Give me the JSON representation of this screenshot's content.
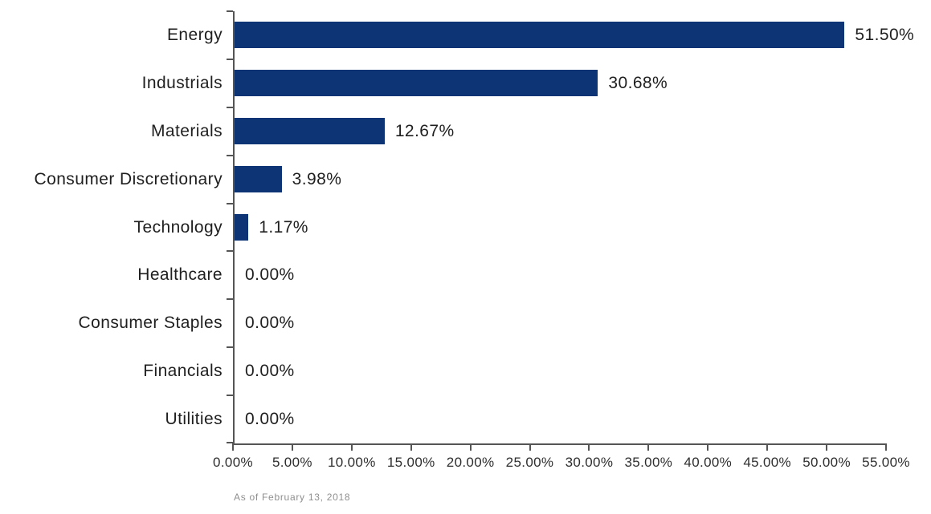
{
  "colors": {
    "bar": "#0d3474",
    "axis": "#555555",
    "text": "#1f1f1f",
    "tick_text": "#2e2e2e",
    "muted": "#8f8f8f"
  },
  "chart_data": {
    "type": "bar",
    "orientation": "horizontal",
    "title": "",
    "xlabel": "",
    "ylabel": "",
    "categories": [
      "Energy",
      "Industrials",
      "Materials",
      "Consumer Discretionary",
      "Technology",
      "Healthcare",
      "Consumer Staples",
      "Financials",
      "Utilities"
    ],
    "values": [
      51.5,
      30.68,
      12.67,
      3.98,
      1.17,
      0.0,
      0.0,
      0.0,
      0.0
    ],
    "display_values": [
      "51.50%",
      "30.68%",
      "12.67%",
      "3.98%",
      "1.17%",
      "0.00%",
      "0.00%",
      "0.00%",
      "0.00%"
    ],
    "xlim": [
      0,
      55
    ],
    "x_ticks": [
      0,
      5,
      10,
      15,
      20,
      25,
      30,
      35,
      40,
      45,
      50,
      55
    ],
    "x_tick_labels": [
      "0.00%",
      "5.00%",
      "10.00%",
      "15.00%",
      "20.00%",
      "25.00%",
      "30.00%",
      "35.00%",
      "40.00%",
      "45.00%",
      "50.00%",
      "55.00%"
    ],
    "grid": "off",
    "legend": "none",
    "footnote": "As of February 13, 2018"
  }
}
